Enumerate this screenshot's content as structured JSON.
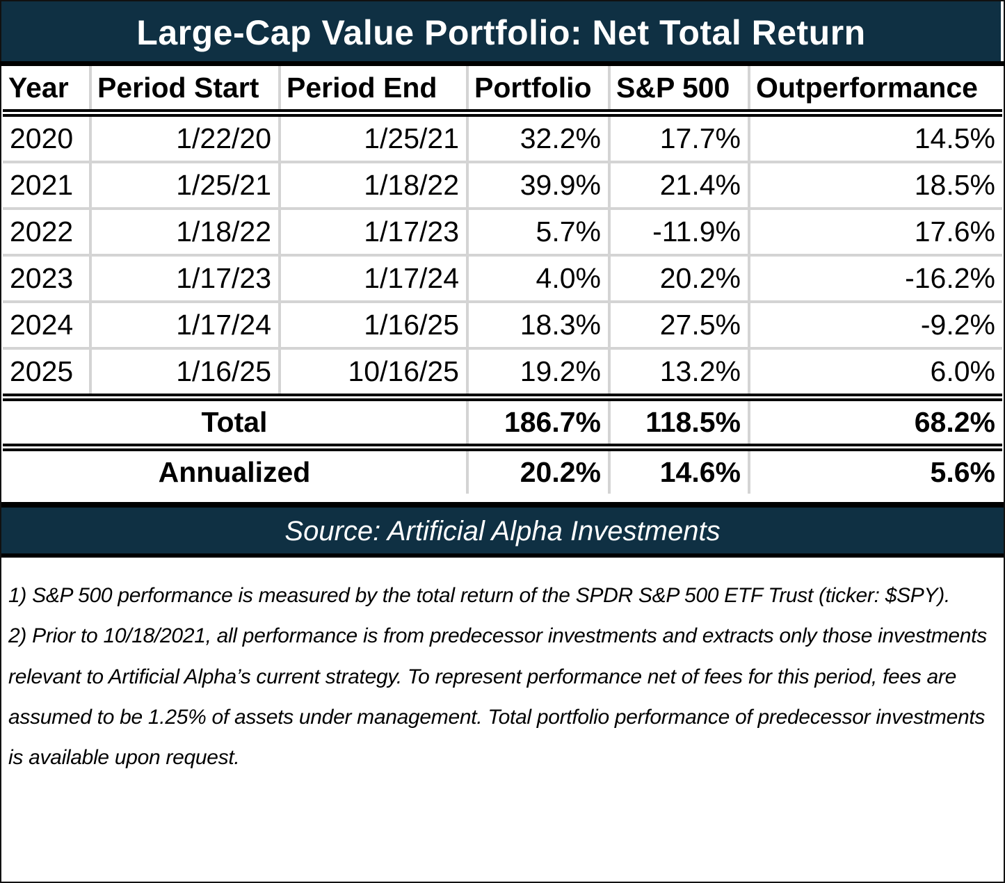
{
  "title": "Large-Cap Value Portfolio: Net Total Return",
  "chart_data": {
    "type": "table",
    "title": "Large-Cap Value Portfolio: Net Total Return",
    "columns": [
      "Year",
      "Period Start",
      "Period End",
      "Portfolio",
      "S&P 500",
      "Outperformance"
    ],
    "rows": [
      [
        "2020",
        "1/22/20",
        "1/25/21",
        "32.2%",
        "17.7%",
        "14.5%"
      ],
      [
        "2021",
        "1/25/21",
        "1/18/22",
        "39.9%",
        "21.4%",
        "18.5%"
      ],
      [
        "2022",
        "1/18/22",
        "1/17/23",
        "5.7%",
        "-11.9%",
        "17.6%"
      ],
      [
        "2023",
        "1/17/23",
        "1/17/24",
        "4.0%",
        "20.2%",
        "-16.2%"
      ],
      [
        "2024",
        "1/17/24",
        "1/16/25",
        "18.3%",
        "27.5%",
        "-9.2%"
      ],
      [
        "2025",
        "1/16/25",
        "10/16/25",
        "19.2%",
        "13.2%",
        "6.0%"
      ]
    ],
    "summary": [
      {
        "label": "Total",
        "portfolio": "186.7%",
        "sp500": "118.5%",
        "outperformance": "68.2%"
      },
      {
        "label": "Annualized",
        "portfolio": "20.2%",
        "sp500": "14.6%",
        "outperformance": "5.6%"
      }
    ]
  },
  "source": "Source: Artificial Alpha Investments",
  "notes": [
    "1) S&P 500 performance is measured by the total return of the SPDR S&P 500 ETF Trust (ticker: $SPY).",
    "2) Prior to 10/18/2021, all performance is from predecessor investments and extracts only those investments relevant to Artificial Alpha’s current strategy. To represent performance net of fees for this period, fees are assumed to be 1.25% of assets under management. Total portfolio performance of predecessor investments is available upon request."
  ],
  "colors": {
    "header_bg": "#0f3043",
    "grid": "#d4d4d4"
  }
}
